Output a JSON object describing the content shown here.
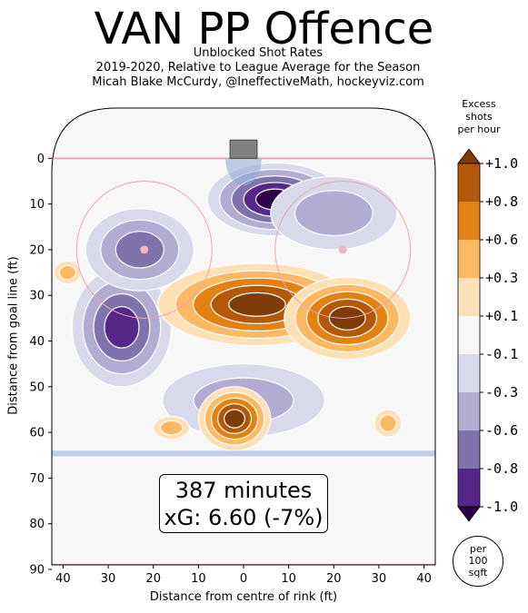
{
  "header": {
    "title": "VAN PP Offence",
    "subtitle_1": "Unblocked Shot Rates",
    "subtitle_2": "2019-2020, Relative to League Average for the Season",
    "subtitle_3": "Micah Blake McCurdy, @IneffectiveMath, hockeyviz.com"
  },
  "chart_data": {
    "type": "heatmap",
    "xlabel": "Distance from centre of rink (ft)",
    "ylabel": "Distance from goal line (ft)",
    "xlim": [
      -42.5,
      42.5
    ],
    "ylim": [
      -11,
      89
    ],
    "x_ticks": [
      -40,
      -30,
      -20,
      -10,
      0,
      10,
      20,
      30,
      40
    ],
    "x_tick_labels": [
      "40",
      "30",
      "20",
      "10",
      "0",
      "10",
      "20",
      "30",
      "40"
    ],
    "y_ticks": [
      0,
      10,
      20,
      30,
      40,
      50,
      60,
      70,
      80,
      90
    ],
    "y_tick_labels": [
      "0",
      "10",
      "20",
      "30",
      "40",
      "50",
      "60",
      "70",
      "80",
      "90"
    ],
    "annotation": {
      "line1": "387 minutes",
      "line2": "xG: 6.60 (-7%)"
    },
    "colorbar": {
      "title_lines": [
        "Excess",
        "shots",
        "per hour"
      ],
      "tick_labels": [
        "+1.0",
        "+0.8",
        "+0.6",
        "+0.3",
        "+0.1",
        "-0.1",
        "-0.3",
        "-0.6",
        "-0.8",
        "-1.0"
      ],
      "colors": [
        "#7f3b08",
        "#b35806",
        "#e08214",
        "#fdb863",
        "#fee0b6",
        "#f7f7f7",
        "#d8daeb",
        "#b2abd2",
        "#8073ac",
        "#542788",
        "#2d004b"
      ],
      "unit_lines": [
        "per",
        "100",
        "sqft"
      ]
    },
    "regions": [
      {
        "name": "slot-top",
        "sign": "negative",
        "cx": 7,
        "cy": 9,
        "rx": 15,
        "ry": 8,
        "peak": -1.0
      },
      {
        "name": "right-crease-band",
        "sign": "negative",
        "cx": 20,
        "cy": 12,
        "rx": 14,
        "ry": 8,
        "peak": -0.3
      },
      {
        "name": "left-halfwall",
        "sign": "negative",
        "cx": -27,
        "cy": 37,
        "rx": 11,
        "ry": 13,
        "peak": -0.8
      },
      {
        "name": "left-faceoff",
        "sign": "negative",
        "cx": -23,
        "cy": 20,
        "rx": 12,
        "ry": 9,
        "peak": -0.6
      },
      {
        "name": "lower-centre",
        "sign": "negative",
        "cx": 0,
        "cy": 53,
        "rx": 18,
        "ry": 8,
        "peak": -0.3
      },
      {
        "name": "high-slot",
        "sign": "positive",
        "cx": 3,
        "cy": 32,
        "rx": 22,
        "ry": 9,
        "peak": 1.0
      },
      {
        "name": "right-circle",
        "sign": "positive",
        "cx": 23,
        "cy": 35,
        "rx": 14,
        "ry": 9,
        "peak": 1.0
      },
      {
        "name": "point-centre",
        "sign": "positive",
        "cx": -2,
        "cy": 57,
        "rx": 8,
        "ry": 7,
        "peak": 1.0
      },
      {
        "name": "left-point-spot",
        "sign": "positive",
        "cx": -39,
        "cy": 25,
        "rx": 3,
        "ry": 2.5,
        "peak": 0.3
      },
      {
        "name": "left-low-spot",
        "sign": "positive",
        "cx": -16,
        "cy": 59,
        "rx": 4,
        "ry": 2.5,
        "peak": 0.3
      },
      {
        "name": "right-low-spot",
        "sign": "positive",
        "cx": 32,
        "cy": 58,
        "rx": 3,
        "ry": 3,
        "peak": 0.3
      }
    ]
  }
}
